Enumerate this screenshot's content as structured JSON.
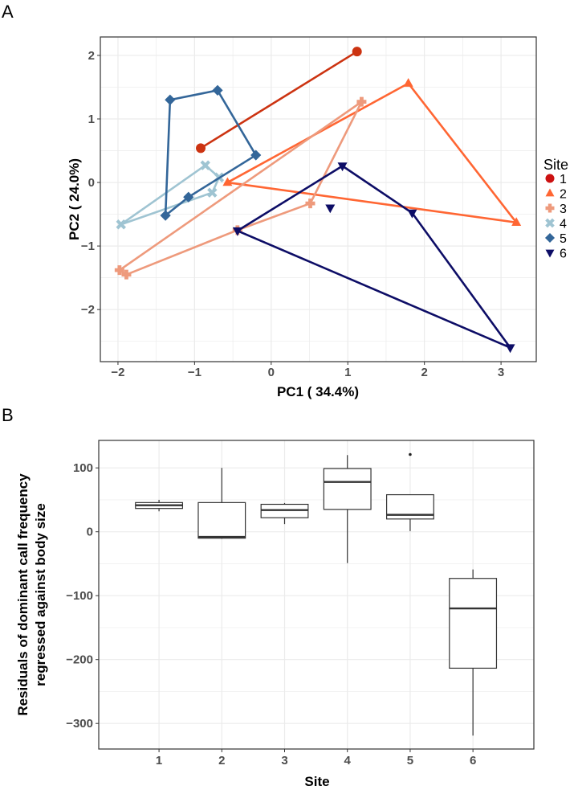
{
  "chart_data": [
    {
      "panel_label": "A",
      "type": "scatter",
      "xlabel": "PC1 ( 34.4%)",
      "ylabel": "PC2 ( 24.0%)",
      "xlim": [
        -2.23,
        3.46
      ],
      "ylim": [
        -2.82,
        2.29
      ],
      "xticks": [
        -2,
        -1,
        0,
        1,
        2,
        3
      ],
      "yticks": [
        -2,
        -1,
        0,
        1,
        2
      ],
      "xtick_labels": [
        "−2",
        "−1",
        "0",
        "1",
        "2",
        "3"
      ],
      "ytick_labels": [
        "−2",
        "−1",
        "0",
        "1",
        "2"
      ],
      "grid": true,
      "legend": {
        "title": "Site",
        "placement": "right"
      },
      "series": [
        {
          "name": "1",
          "shape": "circle",
          "color": "#cc3311",
          "legend_color": "#cc1111",
          "points": [
            [
              -0.92,
              0.54
            ],
            [
              1.12,
              2.06
            ]
          ],
          "hull": [
            0,
            1
          ]
        },
        {
          "name": "2",
          "shape": "triangle-up",
          "color": "#ff6633",
          "points": [
            [
              -0.57,
              0.0
            ],
            [
              1.79,
              1.56
            ],
            [
              3.2,
              -0.63
            ]
          ],
          "hull": [
            0,
            1,
            2,
            0
          ]
        },
        {
          "name": "3",
          "shape": "plus",
          "color": "#ee9a7c",
          "points": [
            [
              -1.98,
              -1.38
            ],
            [
              1.18,
              1.27
            ],
            [
              0.51,
              -0.33
            ],
            [
              -0.44,
              -0.75
            ],
            [
              -1.89,
              -1.45
            ]
          ],
          "hull": [
            0,
            1,
            2,
            3,
            4,
            0
          ]
        },
        {
          "name": "4",
          "shape": "cross",
          "color": "#9fc4d2",
          "points": [
            [
              -1.96,
              -0.66
            ],
            [
              -0.86,
              0.27
            ],
            [
              -0.68,
              0.08
            ],
            [
              -0.77,
              -0.16
            ]
          ],
          "hull": [
            0,
            1,
            2,
            3,
            0
          ]
        },
        {
          "name": "5",
          "shape": "diamond",
          "color": "#336699",
          "points": [
            [
              -1.32,
              1.3
            ],
            [
              -0.7,
              1.45
            ],
            [
              -0.2,
              0.43
            ],
            [
              -1.08,
              -0.23
            ],
            [
              -1.38,
              -0.52
            ]
          ],
          "hull": [
            0,
            1,
            2,
            3,
            4,
            0
          ]
        },
        {
          "name": "6",
          "shape": "triangle-down",
          "color": "#0d0d66",
          "points": [
            [
              0.93,
              0.26
            ],
            [
              1.84,
              -0.48
            ],
            [
              3.12,
              -2.6
            ],
            [
              -0.44,
              -0.76
            ],
            [
              0.77,
              -0.4
            ]
          ],
          "hull": [
            0,
            1,
            2,
            3,
            0
          ]
        }
      ]
    },
    {
      "panel_label": "B",
      "type": "box",
      "xlabel": "Site",
      "ylabel_lines": [
        "Residuals of dominant call frequency",
        "regressed against body size"
      ],
      "categories": [
        "1",
        "2",
        "3",
        "4",
        "5",
        "6"
      ],
      "xlim": [
        0.04,
        6.97
      ],
      "ylim": [
        -340,
        143
      ],
      "yticks": [
        100,
        0,
        -100,
        -200,
        -300
      ],
      "ytick_labels": [
        "100",
        "0",
        "−100",
        "−200",
        "−300"
      ],
      "grid": true,
      "boxes": [
        {
          "site": "1",
          "whisker_low": 32,
          "q1": 36.5,
          "median": 41.5,
          "q3": 45.7,
          "whisker_high": 50,
          "outliers": []
        },
        {
          "site": "2",
          "whisker_low": -11,
          "q1": -10,
          "median": -8,
          "q3": 45.7,
          "whisker_high": 100,
          "outliers": []
        },
        {
          "site": "3",
          "whisker_low": 12,
          "q1": 22,
          "median": 34,
          "q3": 43,
          "whisker_high": 45,
          "outliers": []
        },
        {
          "site": "4",
          "whisker_low": -49,
          "q1": 35,
          "median": 78,
          "q3": 99,
          "whisker_high": 120,
          "outliers": []
        },
        {
          "site": "5",
          "whisker_low": 1,
          "q1": 20,
          "median": 26.5,
          "q3": 58,
          "whisker_high": 58,
          "outliers": [
            121
          ]
        },
        {
          "site": "6",
          "whisker_low": -319,
          "q1": -213.5,
          "median": -120,
          "q3": -73,
          "whisker_high": -59,
          "outliers": []
        }
      ]
    }
  ]
}
